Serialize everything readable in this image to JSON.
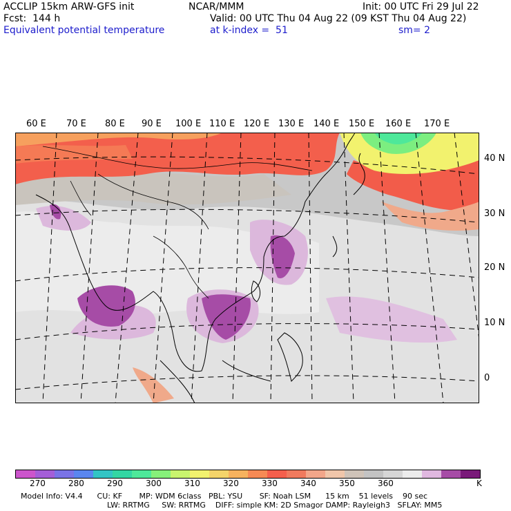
{
  "header": {
    "line1_left": "ACCLIP 15km ARW-GFS init",
    "line1_center": "NCAR/MMM",
    "line1_right": "Init: 00 UTC Fri 29 Jul 22",
    "line2_left": "Fcst:  144 h",
    "line2_right": "Valid: 00 UTC Thu 04 Aug 22 (09 KST Thu 04 Aug 22)",
    "line3_left": "Equivalent potential temperature",
    "line3_center": "at k-index =  51",
    "line3_right": "sm= 2"
  },
  "map": {
    "lon_labels": [
      "60 E",
      "70 E",
      "80 E",
      "90 E",
      "100 E",
      "110 E",
      "120 E",
      "130 E",
      "140 E",
      "150 E",
      "160 E",
      "170 E"
    ],
    "lat_labels": [
      "40 N",
      "30 N",
      "20 N",
      "10 N",
      "0"
    ]
  },
  "colorbar": {
    "colors": [
      "#cc55cc",
      "#a45ed8",
      "#7a73e6",
      "#5a86ef",
      "#33c4c4",
      "#33d6a3",
      "#4ee89a",
      "#86f07a",
      "#c9f46e",
      "#f2f26e",
      "#f4d46a",
      "#f6b25e",
      "#f68a55",
      "#f55f4c",
      "#f07a5e",
      "#f2a68a",
      "#f0c6aa",
      "#cfc3b8",
      "#c3c3c3",
      "#d6d6d6",
      "#ececec",
      "#e0b8e0",
      "#a64ca6",
      "#7a1a7a"
    ],
    "labels": [
      "270",
      "280",
      "290",
      "300",
      "310",
      "320",
      "330",
      "340",
      "350",
      "360"
    ],
    "unit": "K"
  },
  "footer": {
    "line1": "Model Info: V4.4      CU: KF       MP: WDM 6class   PBL: YSU       SF: Noah LSM      15 km    51 levels    90 sec",
    "line2": "LW: RRTMG     SW: RRTMG    DIFF: simple KM: 2D Smagor DAMP: Rayleigh3   SFLAY: MM5"
  }
}
